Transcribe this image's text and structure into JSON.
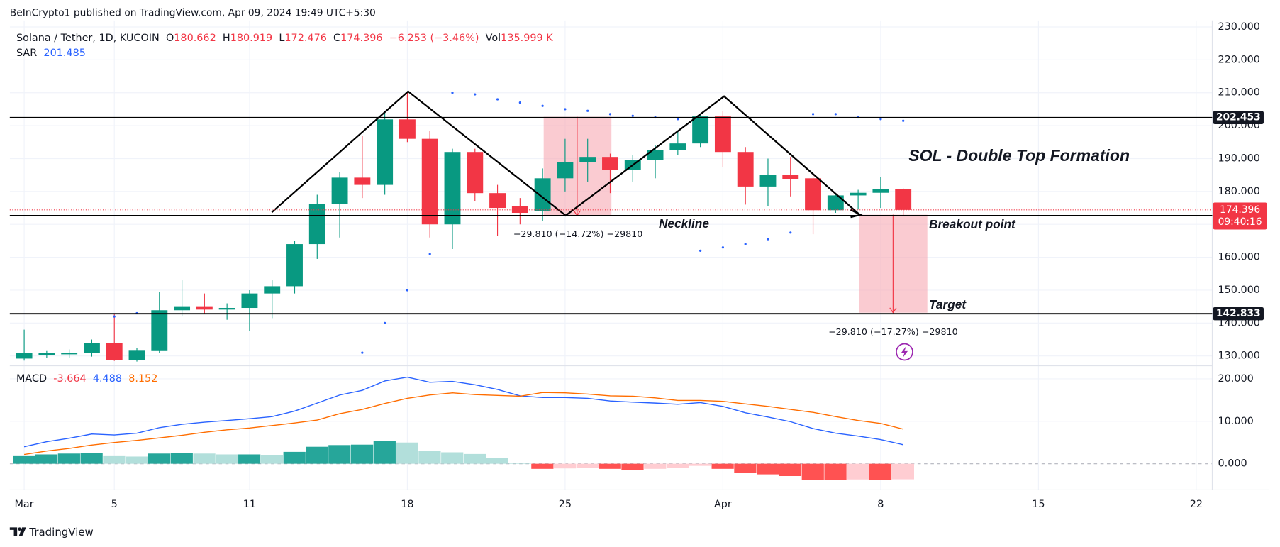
{
  "page": {
    "header": "BeInCrypto1 published on TradingView.com, Apr 09, 2024 19:49 UTC+5:30",
    "ohlc_labels": [
      "O",
      "H",
      "L",
      "C"
    ],
    "change": "−6.253 (−3.46%)",
    "volume_label": "Vol",
    "volume": "135.999 K",
    "annotations": {
      "title": "SOL - Double Top Formation",
      "neckline": "Neckline",
      "breakout": "Breakout point",
      "target": "Target",
      "measure_1": "−29.810 (−14.72%) −29810",
      "measure_2": "−29.810 (−17.27%) −29810"
    },
    "footer": "TradingView"
  },
  "chart_data": [
    {
      "type": "candlestick",
      "title": "Solana / Tether, 1D, KUCOIN",
      "x": [
        "2024-03-01",
        "2024-03-02",
        "2024-03-03",
        "2024-03-04",
        "2024-03-05",
        "2024-03-06",
        "2024-03-07",
        "2024-03-08",
        "2024-03-09",
        "2024-03-10",
        "2024-03-11",
        "2024-03-12",
        "2024-03-13",
        "2024-03-14",
        "2024-03-15",
        "2024-03-16",
        "2024-03-17",
        "2024-03-18",
        "2024-03-19",
        "2024-03-20",
        "2024-03-21",
        "2024-03-22",
        "2024-03-23",
        "2024-03-24",
        "2024-03-25",
        "2024-03-26",
        "2024-03-27",
        "2024-03-28",
        "2024-03-29",
        "2024-03-30",
        "2024-03-31",
        "2024-04-01",
        "2024-04-02",
        "2024-04-03",
        "2024-04-04",
        "2024-04-05",
        "2024-04-06",
        "2024-04-07",
        "2024-04-08",
        "2024-04-09"
      ],
      "open": [
        129.2,
        130.2,
        130.5,
        131.0,
        134.0,
        128.8,
        131.5,
        143.9,
        144.9,
        144.1,
        144.6,
        149.0,
        151.2,
        164.0,
        176.2,
        184.2,
        182.0,
        201.9,
        196.0,
        170.0,
        192.0,
        179.5,
        175.5,
        174.0,
        184.0,
        189.0,
        190.5,
        186.5,
        189.5,
        192.5,
        194.6,
        202.8,
        192.0,
        181.5,
        185.0,
        184.0,
        174.3,
        178.8,
        179.6,
        180.662
      ],
      "high": [
        138,
        131.5,
        132,
        135,
        143,
        132.5,
        149.5,
        153,
        149,
        146,
        150,
        153,
        165,
        179,
        186,
        197,
        204,
        210,
        198.5,
        193,
        193,
        182,
        178,
        187,
        196,
        196,
        191.5,
        191,
        194,
        198.5,
        203.5,
        204.5,
        193.5,
        190,
        190.5,
        185,
        179.5,
        180.5,
        184.5,
        180.919
      ],
      "low": [
        128.6,
        129.5,
        129.3,
        129.8,
        128.5,
        128.3,
        131,
        142,
        143,
        141,
        137.5,
        141.5,
        149,
        159.5,
        166,
        178,
        179,
        195,
        166,
        162.5,
        177,
        166.5,
        170,
        171,
        180,
        183,
        179.5,
        183,
        184,
        191,
        193.5,
        187.5,
        176,
        175.5,
        178.5,
        167,
        173.5,
        174.5,
        175,
        172.476
      ],
      "close": [
        130.8,
        131.0,
        130.8,
        134.0,
        128.7,
        131.6,
        143.9,
        144.9,
        144.1,
        144.6,
        149.0,
        151.2,
        164.0,
        176.2,
        184.2,
        182.0,
        201.9,
        196.0,
        170.0,
        192.0,
        179.5,
        175.0,
        173.5,
        184.0,
        189.0,
        190.5,
        186.5,
        189.5,
        192.5,
        194.6,
        202.8,
        192.0,
        181.5,
        185.0,
        183.8,
        174.3,
        178.8,
        179.6,
        180.7,
        174.396
      ],
      "colors": {
        "up": "#089981",
        "down": "#f23645"
      },
      "sar": {
        "name": "SAR",
        "color": "#2962ff",
        "values": [
          null,
          null,
          null,
          null,
          142,
          143,
          null,
          null,
          null,
          null,
          null,
          null,
          null,
          null,
          null,
          131,
          140,
          150,
          161,
          210,
          209.5,
          208,
          207,
          206,
          205,
          204.5,
          203.5,
          203,
          202.5,
          202,
          162,
          163,
          164,
          165.5,
          167.5,
          203.5,
          203.5,
          202.5,
          202,
          201.485
        ]
      },
      "levels": [
        202.453,
        172.643,
        142.833
      ],
      "countdown": "09:40:16",
      "xlim": [
        "2024-02-29",
        "2024-04-23"
      ],
      "xticks": [
        {
          "value": "2024-03-01",
          "label": "Mar"
        },
        {
          "value": "2024-03-05",
          "label": "5"
        },
        {
          "value": "2024-03-11",
          "label": "11"
        },
        {
          "value": "2024-03-18",
          "label": "18"
        },
        {
          "value": "2024-03-25",
          "label": "25"
        },
        {
          "value": "2024-04-01",
          "label": "Apr"
        },
        {
          "value": "2024-04-08",
          "label": "8"
        },
        {
          "value": "2024-04-15",
          "label": "15"
        },
        {
          "value": "2024-04-22",
          "label": "22"
        }
      ],
      "ylim": [
        127.27,
        231.99
      ],
      "yticks": [
        {
          "value": 130,
          "label": "130.000"
        },
        {
          "value": 140,
          "label": "140.000"
        },
        {
          "value": 150,
          "label": "150.000"
        },
        {
          "value": 160,
          "label": "160.000"
        },
        {
          "value": 170,
          "label": "170.000"
        },
        {
          "value": 180,
          "label": "180.000"
        },
        {
          "value": 190,
          "label": "190.000"
        },
        {
          "value": 200,
          "label": "200.000"
        },
        {
          "value": 210,
          "label": "210.000"
        },
        {
          "value": 220,
          "label": "220.000"
        },
        {
          "value": 230,
          "label": "230.000"
        }
      ],
      "grid": true
    },
    {
      "type": "macd",
      "name": "MACD",
      "x": [
        "2024-03-01",
        "2024-03-02",
        "2024-03-03",
        "2024-03-04",
        "2024-03-05",
        "2024-03-06",
        "2024-03-07",
        "2024-03-08",
        "2024-03-09",
        "2024-03-10",
        "2024-03-11",
        "2024-03-12",
        "2024-03-13",
        "2024-03-14",
        "2024-03-15",
        "2024-03-16",
        "2024-03-17",
        "2024-03-18",
        "2024-03-19",
        "2024-03-20",
        "2024-03-21",
        "2024-03-22",
        "2024-03-23",
        "2024-03-24",
        "2024-03-25",
        "2024-03-26",
        "2024-03-27",
        "2024-03-28",
        "2024-03-29",
        "2024-03-30",
        "2024-03-31",
        "2024-04-01",
        "2024-04-02",
        "2024-04-03",
        "2024-04-04",
        "2024-04-05",
        "2024-04-06",
        "2024-04-07",
        "2024-04-08",
        "2024-04-09"
      ],
      "histogram": {
        "colors": [
          "#26a69a",
          "#b2dfdb",
          "#ffcdd2",
          "#ff5252"
        ],
        "values": [
          1.8,
          2.2,
          2.4,
          2.6,
          1.8,
          1.7,
          2.4,
          2.6,
          2.4,
          2.2,
          2.2,
          2.1,
          2.8,
          4.0,
          4.4,
          4.5,
          5.3,
          5.0,
          3.0,
          2.7,
          2.3,
          1.4,
          0.1,
          -1.2,
          -1.1,
          -1.0,
          -1.2,
          -1.4,
          -1.2,
          -0.9,
          -0.5,
          -1.2,
          -2.1,
          -2.5,
          -2.9,
          -3.8,
          -3.9,
          -3.7,
          -3.8,
          -3.664
        ]
      },
      "macd": {
        "color": "#2962ff",
        "values": [
          4.0,
          5.2,
          6.0,
          7.0,
          6.8,
          7.2,
          8.5,
          9.3,
          9.8,
          10.2,
          10.6,
          11.1,
          12.4,
          14.3,
          16.2,
          17.3,
          19.5,
          20.4,
          19.2,
          19.4,
          18.6,
          17.5,
          16.0,
          15.6,
          15.6,
          15.4,
          14.8,
          14.5,
          14.3,
          14.0,
          14.4,
          13.5,
          12.0,
          11.0,
          9.9,
          8.3,
          7.2,
          6.5,
          5.7,
          4.488
        ]
      },
      "signal": {
        "color": "#ff6d00",
        "values": [
          2.2,
          3.0,
          3.6,
          4.4,
          5.0,
          5.5,
          6.1,
          6.7,
          7.4,
          8.0,
          8.4,
          9.0,
          9.6,
          10.3,
          11.8,
          12.8,
          14.2,
          15.4,
          16.2,
          16.7,
          16.3,
          16.1,
          15.9,
          16.8,
          16.7,
          16.4,
          16.0,
          15.9,
          15.5,
          14.9,
          14.9,
          14.7,
          14.1,
          13.5,
          12.8,
          12.1,
          11.1,
          10.2,
          9.5,
          8.152
        ]
      },
      "ylim": [
        -6.15,
        23.08
      ],
      "yticks": [
        {
          "value": 0,
          "label": "0.000"
        },
        {
          "value": 10,
          "label": "10.000"
        },
        {
          "value": 20,
          "label": "20.000"
        }
      ]
    }
  ]
}
